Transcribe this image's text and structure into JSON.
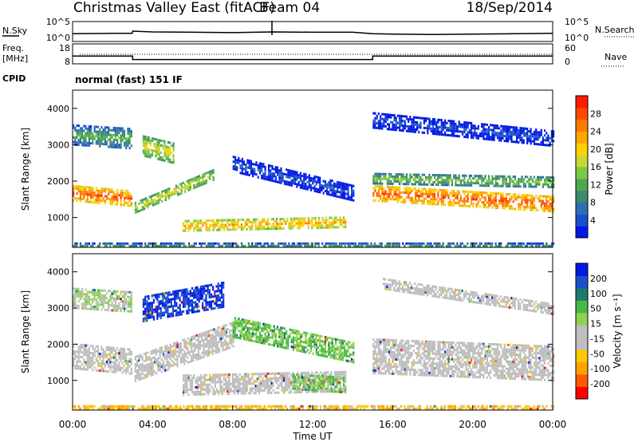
{
  "header": {
    "station": "Christmas Valley East (fitACF)",
    "beam": "Beam 04",
    "date": "18/Sep/2014"
  },
  "colors": {
    "power_scale": [
      "#0019e6",
      "#1a4fcc",
      "#2e6eb3",
      "#3d8a6a",
      "#4ea84e",
      "#7dc843",
      "#c8d735",
      "#ffd100",
      "#ffa400",
      "#ff7a00",
      "#ff4a00",
      "#ff1c00"
    ],
    "velocity_scale": [
      "#ff0000",
      "#ff5a00",
      "#ffa000",
      "#ffc800",
      "#bebebe",
      "#bebebe",
      "#8fd14f",
      "#47b847",
      "#1e7a6a",
      "#1a4fcc",
      "#0019e6"
    ]
  },
  "chart_data": [
    {
      "type": "line",
      "panel": "noise",
      "left_label": "N.Sky",
      "right_label": "N.Search",
      "y_ticks_left": [
        "10^5",
        "10^0"
      ],
      "y_ticks_right": [
        "10^5",
        "10^0"
      ],
      "x": [
        "00:00",
        "02:00",
        "02:59",
        "03:00",
        "04:00",
        "06:00",
        "08:00",
        "10:00",
        "12:00",
        "14:00",
        "15:00",
        "16:00",
        "18:00",
        "20:00",
        "22:00",
        "24:00"
      ],
      "series": [
        {
          "values": [
            1.9,
            2.0,
            2.0,
            2.6,
            2.4,
            2.3,
            2.2,
            2.4,
            2.3,
            2.3,
            1.9,
            1.8,
            1.7,
            1.8,
            1.9,
            2.0
          ]
        }
      ]
    },
    {
      "type": "line",
      "panel": "frequency",
      "left_label": "Freq.",
      "left_unit": "[MHz]",
      "right_label": "Nave",
      "y_ticks_left": [
        "18",
        "8"
      ],
      "y_ticks_right": [
        "60",
        "0"
      ],
      "series": [
        {
          "x": [
            "00:00",
            "03:00",
            "03:00",
            "15:00",
            "15:00",
            "24:00"
          ],
          "values": [
            12,
            12,
            10,
            10,
            12,
            12
          ]
        }
      ],
      "cpid_label": "CPID",
      "cpid_value": "normal (fast) 151 IF"
    },
    {
      "type": "heatmap",
      "panel": "power",
      "ylabel": "Slant Range [km]",
      "y_ticks": [
        "1000",
        "2000",
        "3000",
        "4000"
      ],
      "ylim": [
        180,
        4500
      ],
      "colorbar_label": "Power [dB]",
      "colorbar_ticks": [
        "4",
        "8",
        "12",
        "16",
        "20",
        "24",
        "28"
      ],
      "bands": [
        {
          "start": [
            0.0,
            1700
          ],
          "end": [
            2.9,
            1550
          ],
          "width": 180,
          "level": 0.85
        },
        {
          "start": [
            3.1,
            1300
          ],
          "end": [
            7.0,
            2200
          ],
          "width": 160,
          "level": 0.55
        },
        {
          "start": [
            5.5,
            800
          ],
          "end": [
            13.6,
            900
          ],
          "width": 150,
          "level": 0.7
        },
        {
          "start": [
            15.0,
            1700
          ],
          "end": [
            24.0,
            1400
          ],
          "width": 200,
          "level": 0.85
        },
        {
          "start": [
            15.0,
            2100
          ],
          "end": [
            24.0,
            2000
          ],
          "width": 120,
          "level": 0.45
        },
        {
          "start": [
            0.0,
            3300
          ],
          "end": [
            2.9,
            3200
          ],
          "width": 250,
          "level": 0.4
        },
        {
          "start": [
            3.5,
            3000
          ],
          "end": [
            5.0,
            2800
          ],
          "width": 250,
          "level": 0.6
        },
        {
          "start": [
            15.0,
            3700
          ],
          "end": [
            24.0,
            3200
          ],
          "width": 180,
          "level": 0.15
        },
        {
          "start": [
            8.0,
            2500
          ],
          "end": [
            14.0,
            1700
          ],
          "width": 200,
          "level": 0.15
        },
        {
          "start": [
            0.0,
            250
          ],
          "end": [
            24.0,
            250
          ],
          "width": 80,
          "level": 0.3
        }
      ]
    },
    {
      "type": "heatmap",
      "panel": "velocity",
      "ylabel": "Slant Range [km]",
      "y_ticks": [
        "1000",
        "2000",
        "3000",
        "4000"
      ],
      "ylim": [
        180,
        4500
      ],
      "colorbar_label": "Velocity [m s⁻¹]",
      "colorbar_ticks": [
        "-200",
        "-100",
        "-50",
        "-15",
        "15",
        "50",
        "100",
        "200"
      ],
      "xlabel": "Time UT",
      "x_ticks": [
        "00:00",
        "04:00",
        "08:00",
        "12:00",
        "16:00",
        "20:00",
        "00:00"
      ],
      "bands": [
        {
          "start": [
            0.0,
            1700
          ],
          "end": [
            2.9,
            1550
          ],
          "width": 350,
          "level": 0.45
        },
        {
          "start": [
            3.1,
            1350
          ],
          "end": [
            8.0,
            2300
          ],
          "width": 300,
          "level": 0.45
        },
        {
          "start": [
            5.5,
            900
          ],
          "end": [
            13.6,
            1000
          ],
          "width": 250,
          "level": 0.45
        },
        {
          "start": [
            11.0,
            1000
          ],
          "end": [
            13.6,
            900
          ],
          "width": 200,
          "level": 0.62
        },
        {
          "start": [
            15.0,
            1700
          ],
          "end": [
            24.0,
            1500
          ],
          "width": 450,
          "level": 0.45
        },
        {
          "start": [
            3.5,
            3000
          ],
          "end": [
            7.5,
            3400
          ],
          "width": 300,
          "level": 0.92
        },
        {
          "start": [
            0.0,
            3300
          ],
          "end": [
            2.9,
            3200
          ],
          "width": 250,
          "level": 0.55
        },
        {
          "start": [
            15.5,
            3700
          ],
          "end": [
            24.0,
            3000
          ],
          "width": 150,
          "level": 0.45
        },
        {
          "start": [
            8.0,
            2500
          ],
          "end": [
            14.0,
            1800
          ],
          "width": 250,
          "level": 0.65
        },
        {
          "start": [
            0.0,
            250
          ],
          "end": [
            24.0,
            250
          ],
          "width": 80,
          "level": 0.3
        }
      ]
    }
  ]
}
